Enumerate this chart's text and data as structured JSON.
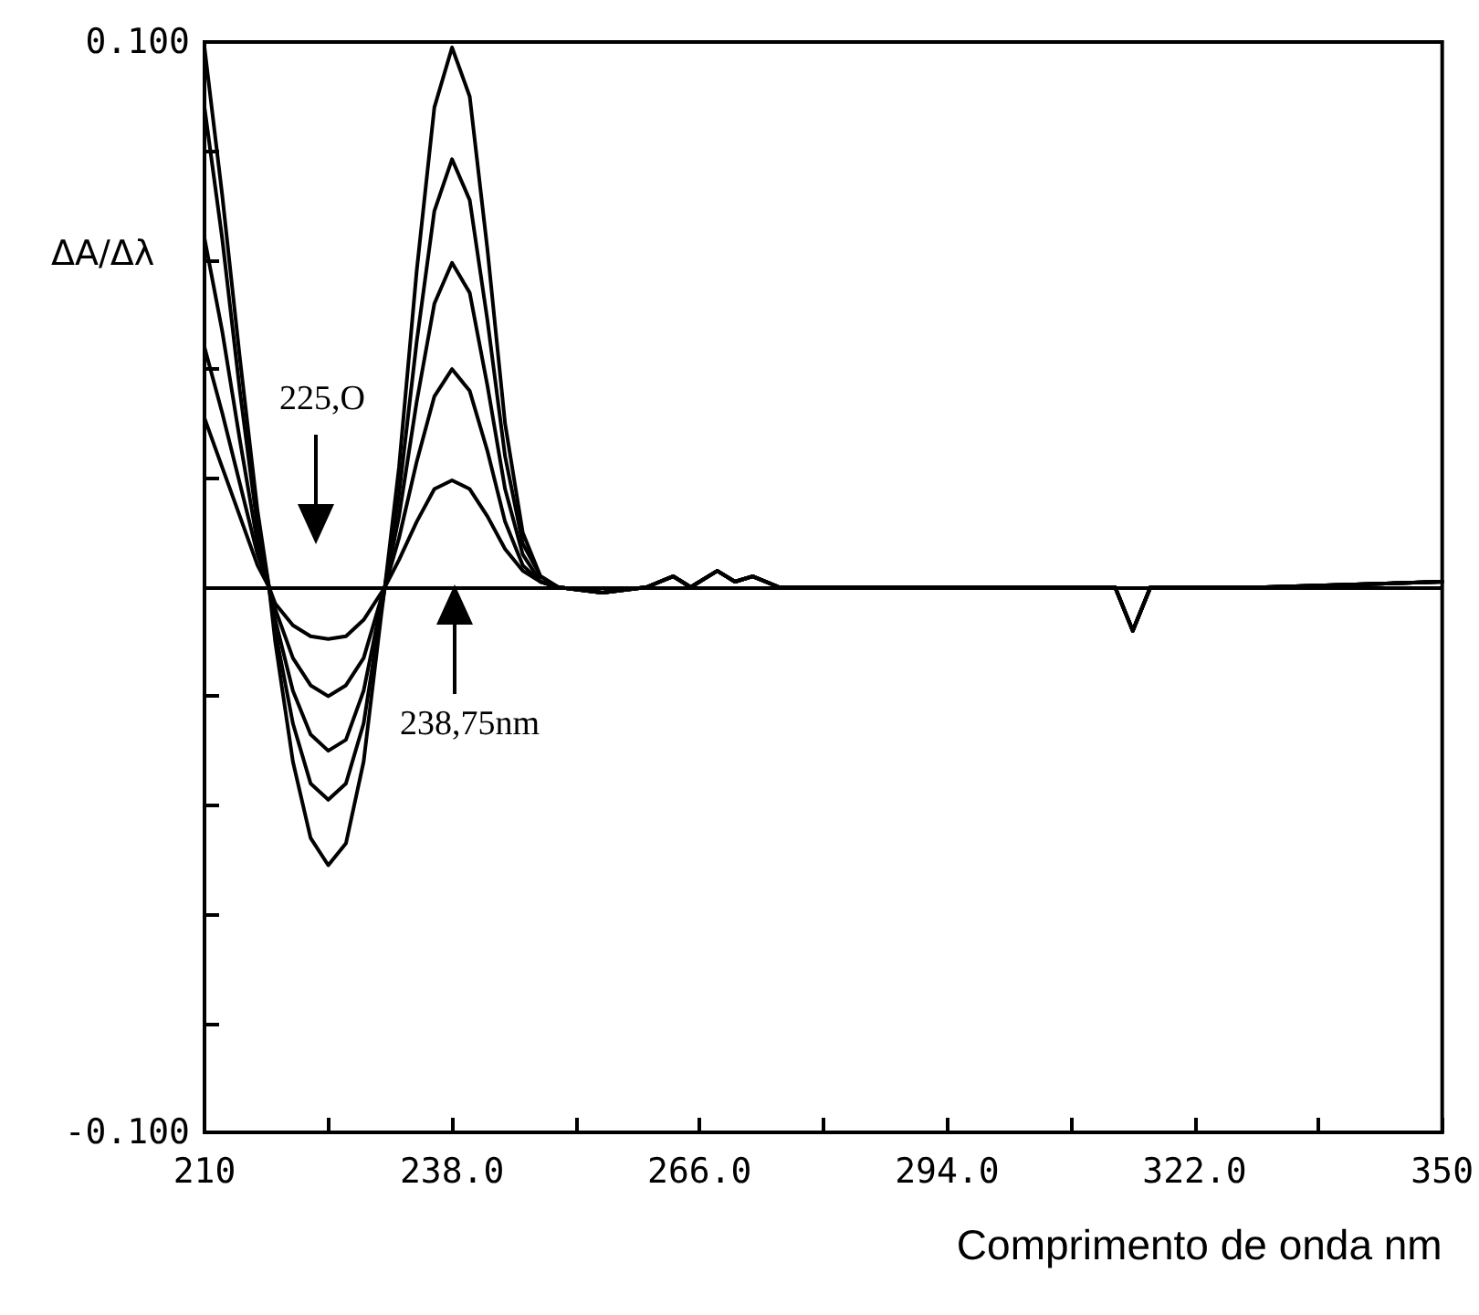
{
  "chart_data": {
    "type": "line",
    "xlabel": "Comprimento de onda nm",
    "ylabel": "ΔA/Δλ",
    "x": [
      210,
      212,
      214,
      216,
      217.3,
      218,
      220,
      222,
      224,
      226,
      228,
      230,
      230.4,
      232,
      234,
      236,
      238,
      240,
      242,
      244,
      246,
      248,
      250,
      255,
      260,
      263,
      265,
      268,
      270,
      272,
      275,
      290,
      310,
      313,
      315,
      317,
      330,
      350
    ],
    "series": [
      {
        "color": "#000000",
        "values": [
          0.099,
          0.072,
          0.042,
          0.014,
          0,
          -0.01,
          -0.032,
          -0.046,
          -0.051,
          -0.047,
          -0.032,
          -0.005,
          0,
          0.022,
          0.058,
          0.088,
          0.099,
          0.09,
          0.062,
          0.03,
          0.01,
          0.002,
          0,
          -0.001,
          0,
          0.002,
          0,
          0.003,
          0.001,
          0.002,
          0,
          0,
          0,
          0,
          -0.008,
          0,
          0,
          0.001
        ]
      },
      {
        "color": "#000000",
        "values": [
          0.088,
          0.064,
          0.036,
          0.011,
          0,
          -0.008,
          -0.025,
          -0.036,
          -0.039,
          -0.036,
          -0.025,
          -0.004,
          0,
          0.017,
          0.045,
          0.069,
          0.0785,
          0.071,
          0.049,
          0.024,
          0.008,
          0.002,
          0,
          -0.001,
          0,
          0.002,
          0,
          0.003,
          0.001,
          0.002,
          0,
          0,
          0,
          0,
          -0.008,
          0,
          0,
          0.001
        ]
      },
      {
        "color": "#000000",
        "values": [
          0.064,
          0.047,
          0.027,
          0.008,
          0,
          -0.006,
          -0.019,
          -0.027,
          -0.03,
          -0.028,
          -0.019,
          -0.003,
          0,
          0.013,
          0.034,
          0.052,
          0.0595,
          0.054,
          0.037,
          0.018,
          0.006,
          0.001,
          0,
          -0.001,
          0,
          0.002,
          0,
          0.003,
          0.001,
          0.002,
          0,
          0,
          0,
          0,
          -0.008,
          0,
          0,
          0.001
        ]
      },
      {
        "color": "#000000",
        "values": [
          0.044,
          0.032,
          0.019,
          0.006,
          0,
          -0.004,
          -0.013,
          -0.018,
          -0.02,
          -0.018,
          -0.013,
          -0.002,
          0,
          0.009,
          0.023,
          0.035,
          0.04,
          0.036,
          0.025,
          0.012,
          0.004,
          0.001,
          0,
          -0.001,
          0,
          0.002,
          0,
          0.003,
          0.001,
          0.002,
          0,
          0,
          0,
          0,
          -0.008,
          0,
          0,
          0.001
        ]
      },
      {
        "color": "#000000",
        "values": [
          0.031,
          0.022,
          0.013,
          0.004,
          0,
          -0.003,
          -0.007,
          -0.009,
          -0.0095,
          -0.009,
          -0.006,
          -0.001,
          0,
          0.005,
          0.012,
          0.018,
          0.0196,
          0.018,
          0.013,
          0.007,
          0.003,
          0.001,
          0,
          -0.001,
          0,
          0.002,
          0,
          0.003,
          0.001,
          0.002,
          0,
          0,
          0,
          0,
          -0.008,
          0,
          0,
          0.001
        ]
      }
    ],
    "xlim": [
      210,
      350
    ],
    "xticks": [
      210,
      {
        "value": 224,
        "label": null
      },
      {
        "value": 238,
        "label": "238.0"
      },
      {
        "value": 252,
        "label": null
      },
      {
        "value": 266,
        "label": "266.0"
      },
      {
        "value": 280,
        "label": null
      },
      {
        "value": 294,
        "label": "294.0"
      },
      {
        "value": 308,
        "label": null
      },
      {
        "value": 322,
        "label": "322.0"
      },
      {
        "value": 336,
        "label": null
      },
      350
    ],
    "ylim": [
      -0.1,
      0.1
    ],
    "yticks": [
      {
        "value": -0.1,
        "label": "-0.100"
      },
      {
        "value": -0.08,
        "label": null
      },
      {
        "value": -0.06,
        "label": null
      },
      {
        "value": -0.04,
        "label": null
      },
      {
        "value": -0.02,
        "label": null
      },
      {
        "value": 0,
        "label": null
      },
      {
        "value": 0.02,
        "label": null
      },
      {
        "value": 0.04,
        "label": null
      },
      {
        "value": 0.06,
        "label": null
      },
      {
        "value": 0.08,
        "label": null
      },
      {
        "value": 0.1,
        "label": "0.100"
      }
    ],
    "ref_lines": [
      {
        "axis": "y",
        "value": 0,
        "color": "#000000"
      }
    ],
    "annotations": [
      "225,O",
      "238,75nm"
    ],
    "grid": false,
    "marker": "none",
    "line_style": "solid"
  }
}
